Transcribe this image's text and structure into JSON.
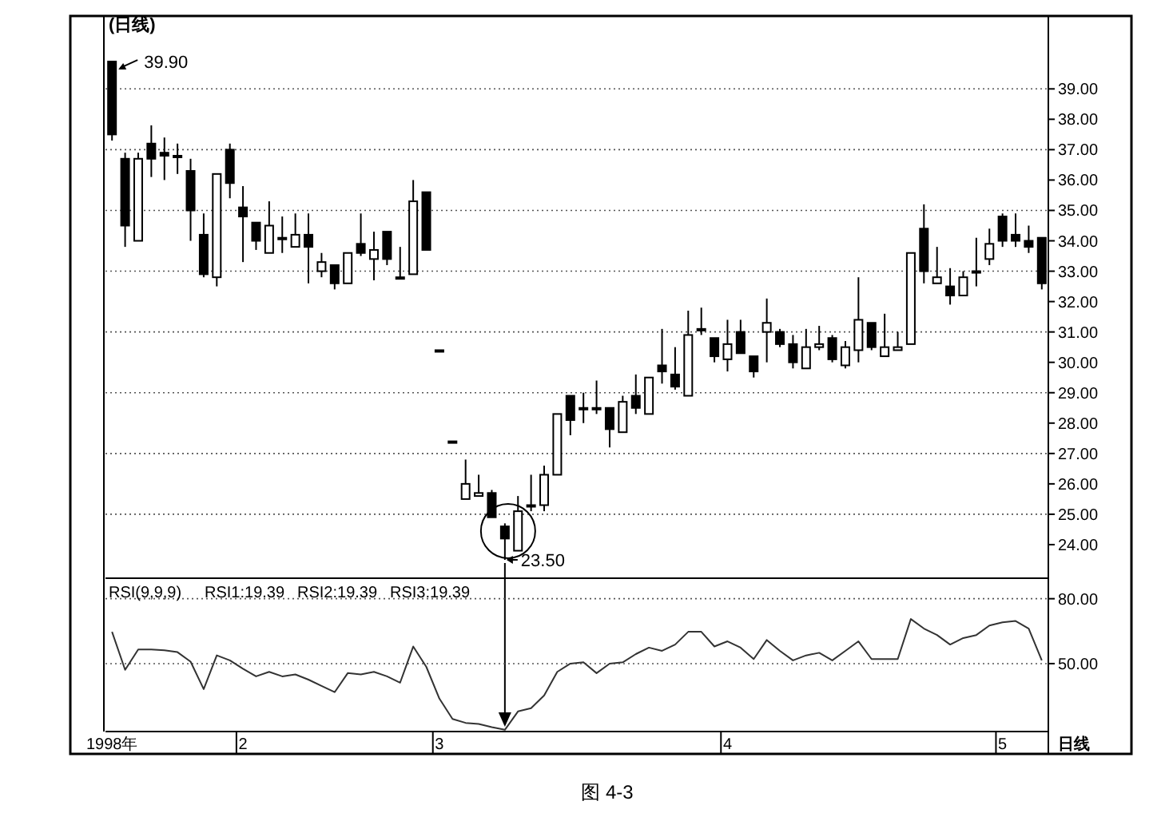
{
  "chart_data": [
    {
      "type": "candlestick",
      "title": "(日线)",
      "categories": [
        null,
        null,
        null,
        null,
        null,
        null,
        null,
        null,
        null,
        null,
        null,
        null,
        null,
        null,
        null,
        null,
        null,
        null,
        null,
        null,
        null,
        null,
        null,
        null,
        null,
        null,
        null,
        null,
        null,
        null,
        null,
        null,
        null,
        null,
        null,
        null,
        null,
        null,
        null,
        null,
        null,
        null,
        null,
        null,
        null,
        null,
        null,
        null,
        null,
        null,
        null,
        null,
        null,
        null,
        null,
        null,
        null,
        null,
        null,
        null,
        null,
        null,
        null,
        null,
        null,
        null,
        null,
        null,
        null,
        null,
        null,
        null
      ],
      "ohlc": [
        [
          39.9,
          39.9,
          37.3,
          37.5
        ],
        [
          36.7,
          36.9,
          33.8,
          34.5
        ],
        [
          34.0,
          36.9,
          34.0,
          36.7
        ],
        [
          37.2,
          37.8,
          36.1,
          36.7
        ],
        [
          36.9,
          37.4,
          36.0,
          36.8
        ],
        [
          36.8,
          37.2,
          36.2,
          36.8
        ],
        [
          36.3,
          36.7,
          34.0,
          35.0
        ],
        [
          34.2,
          34.9,
          32.8,
          32.9
        ],
        [
          32.8,
          36.2,
          32.5,
          36.2
        ],
        [
          37.0,
          37.2,
          35.4,
          35.9
        ],
        [
          35.1,
          35.8,
          33.3,
          34.8
        ],
        [
          34.6,
          34.6,
          33.7,
          34.0
        ],
        [
          33.6,
          35.3,
          33.6,
          34.5
        ],
        [
          34.1,
          34.8,
          33.6,
          34.1
        ],
        [
          33.8,
          34.9,
          33.8,
          34.2
        ],
        [
          34.2,
          34.9,
          32.6,
          33.8
        ],
        [
          33.0,
          33.6,
          32.8,
          33.3
        ],
        [
          33.2,
          33.2,
          32.4,
          32.6
        ],
        [
          32.6,
          33.6,
          32.6,
          33.6
        ],
        [
          33.9,
          34.9,
          33.5,
          33.6
        ],
        [
          33.4,
          34.3,
          32.7,
          33.7
        ],
        [
          34.3,
          34.3,
          33.2,
          33.4
        ],
        [
          32.8,
          33.8,
          32.8,
          32.8
        ],
        [
          32.9,
          36.0,
          32.9,
          35.3
        ],
        [
          35.6,
          35.6,
          33.7,
          33.7
        ],
        [
          30.4,
          30.4,
          30.4,
          30.4
        ],
        [
          27.4,
          27.4,
          27.4,
          27.4
        ],
        [
          25.5,
          26.8,
          25.5,
          26.0
        ],
        [
          25.6,
          26.3,
          25.6,
          25.7
        ],
        [
          25.7,
          25.8,
          24.9,
          24.9
        ],
        [
          24.6,
          24.7,
          23.5,
          24.2
        ],
        [
          23.8,
          25.6,
          23.8,
          25.1
        ],
        [
          25.3,
          26.3,
          25.1,
          25.3
        ],
        [
          25.3,
          26.6,
          25.1,
          26.3
        ],
        [
          26.3,
          28.3,
          26.3,
          28.3
        ],
        [
          28.9,
          28.9,
          27.6,
          28.1
        ],
        [
          28.5,
          29.0,
          28.0,
          28.5
        ],
        [
          28.5,
          29.4,
          28.3,
          28.5
        ],
        [
          28.5,
          28.5,
          27.2,
          27.8
        ],
        [
          27.7,
          28.9,
          27.7,
          28.7
        ],
        [
          28.9,
          29.6,
          28.3,
          28.5
        ],
        [
          28.3,
          29.5,
          28.3,
          29.5
        ],
        [
          29.9,
          31.1,
          29.3,
          29.7
        ],
        [
          29.6,
          30.5,
          29.1,
          29.2
        ],
        [
          28.9,
          31.7,
          28.9,
          30.9
        ],
        [
          31.1,
          31.8,
          30.9,
          31.1
        ],
        [
          30.8,
          30.8,
          30.0,
          30.2
        ],
        [
          30.1,
          31.4,
          29.7,
          30.6
        ],
        [
          31.0,
          31.4,
          30.3,
          30.3
        ],
        [
          30.2,
          30.2,
          29.5,
          29.7
        ],
        [
          31.0,
          32.1,
          30.0,
          31.3
        ],
        [
          31.0,
          31.1,
          30.5,
          30.6
        ],
        [
          30.6,
          30.9,
          29.8,
          30.0
        ],
        [
          29.8,
          31.1,
          29.8,
          30.5
        ],
        [
          30.5,
          31.2,
          30.4,
          30.6
        ],
        [
          30.8,
          30.9,
          30.0,
          30.1
        ],
        [
          29.9,
          30.7,
          29.8,
          30.5
        ],
        [
          30.4,
          32.8,
          30.0,
          31.4
        ],
        [
          31.3,
          31.3,
          30.4,
          30.5
        ],
        [
          30.2,
          31.6,
          30.2,
          30.5
        ],
        [
          30.4,
          31.0,
          30.4,
          30.5
        ],
        [
          30.6,
          33.6,
          30.6,
          33.6
        ],
        [
          34.4,
          35.2,
          32.6,
          33.0
        ],
        [
          32.6,
          33.8,
          32.6,
          32.8
        ],
        [
          32.5,
          33.1,
          31.9,
          32.2
        ],
        [
          32.2,
          33.0,
          32.2,
          32.8
        ],
        [
          33.0,
          34.1,
          32.5,
          33.0
        ],
        [
          33.4,
          34.4,
          33.2,
          33.9
        ],
        [
          34.8,
          34.9,
          33.8,
          34.0
        ],
        [
          34.2,
          34.9,
          33.8,
          34.0
        ],
        [
          34.0,
          34.5,
          33.6,
          33.8
        ],
        [
          34.1,
          34.1,
          32.4,
          32.6
        ]
      ],
      "ylim": [
        23,
        41.4
      ],
      "yticks": [
        {
          "value": 24,
          "label": "24.00"
        },
        {
          "value": 25,
          "label": "25.00"
        },
        {
          "value": 26,
          "label": "26.00"
        },
        {
          "value": 27,
          "label": "27.00"
        },
        {
          "value": 28,
          "label": "28.00"
        },
        {
          "value": 29,
          "label": "29.00"
        },
        {
          "value": 30,
          "label": "30.00"
        },
        {
          "value": 31,
          "label": "31.00"
        },
        {
          "value": 32,
          "label": "32.00"
        },
        {
          "value": 33,
          "label": "33.00"
        },
        {
          "value": 34,
          "label": "34.00"
        },
        {
          "value": 35,
          "label": "35.00"
        },
        {
          "value": 36,
          "label": "36.00"
        },
        {
          "value": 37,
          "label": "37.00"
        },
        {
          "value": 38,
          "label": "38.00"
        },
        {
          "value": 39,
          "label": "39.00"
        }
      ],
      "grid": true,
      "tick_labels": "y",
      "annotations": [
        "39.90",
        "23.50"
      ]
    },
    {
      "type": "line",
      "title": "RSI(9,9,9)",
      "categories": [
        "1998年",
        null,
        null,
        null,
        null,
        null,
        null,
        null,
        null,
        null,
        "2",
        null,
        null,
        null,
        null,
        null,
        null,
        null,
        null,
        null,
        null,
        null,
        null,
        null,
        null,
        "3",
        null,
        null,
        null,
        null,
        null,
        null,
        null,
        null,
        null,
        null,
        null,
        null,
        null,
        null,
        null,
        null,
        null,
        null,
        null,
        null,
        null,
        "4",
        null,
        null,
        null,
        null,
        null,
        null,
        null,
        null,
        null,
        null,
        null,
        null,
        null,
        null,
        null,
        null,
        null,
        null,
        null,
        null,
        "5",
        null,
        null,
        null
      ],
      "series": [
        {
          "color": "#333333",
          "values": [
            64.7,
            47.1,
            56.5,
            56.5,
            56.2,
            55.3,
            50.9,
            38.2,
            53.8,
            51.5,
            47.6,
            44.1,
            46.2,
            44.1,
            45,
            42.6,
            39.7,
            36.8,
            45.6,
            45,
            46.2,
            44.1,
            41.2,
            57.9,
            48.5,
            33.8,
            24.4,
            22.6,
            22.1,
            20.6,
            19.4,
            27.9,
            29.4,
            35.3,
            46.2,
            50,
            50.6,
            45.6,
            50,
            50.6,
            54.4,
            57.4,
            55.9,
            58.8,
            64.7,
            64.7,
            57.9,
            60.3,
            57.4,
            52.1,
            60.9,
            55.9,
            51.5,
            53.8,
            55,
            51.5,
            55.9,
            60.3,
            52.1,
            52.1,
            52.1,
            70.6,
            66.2,
            63.2,
            58.8,
            61.8,
            63.2,
            67.6,
            69.1,
            69.7,
            66.2,
            51.5
          ]
        }
      ],
      "ylim": [
        18.6,
        88
      ],
      "yticks": [
        {
          "value": 50,
          "label": "50.00"
        },
        {
          "value": 80,
          "label": "80.00"
        }
      ],
      "grid": true,
      "annotations": [
        "RSI1:19.39",
        "RSI2:19.39",
        "RSI3:19.39",
        "日线",
        "图 4-3"
      ]
    }
  ]
}
